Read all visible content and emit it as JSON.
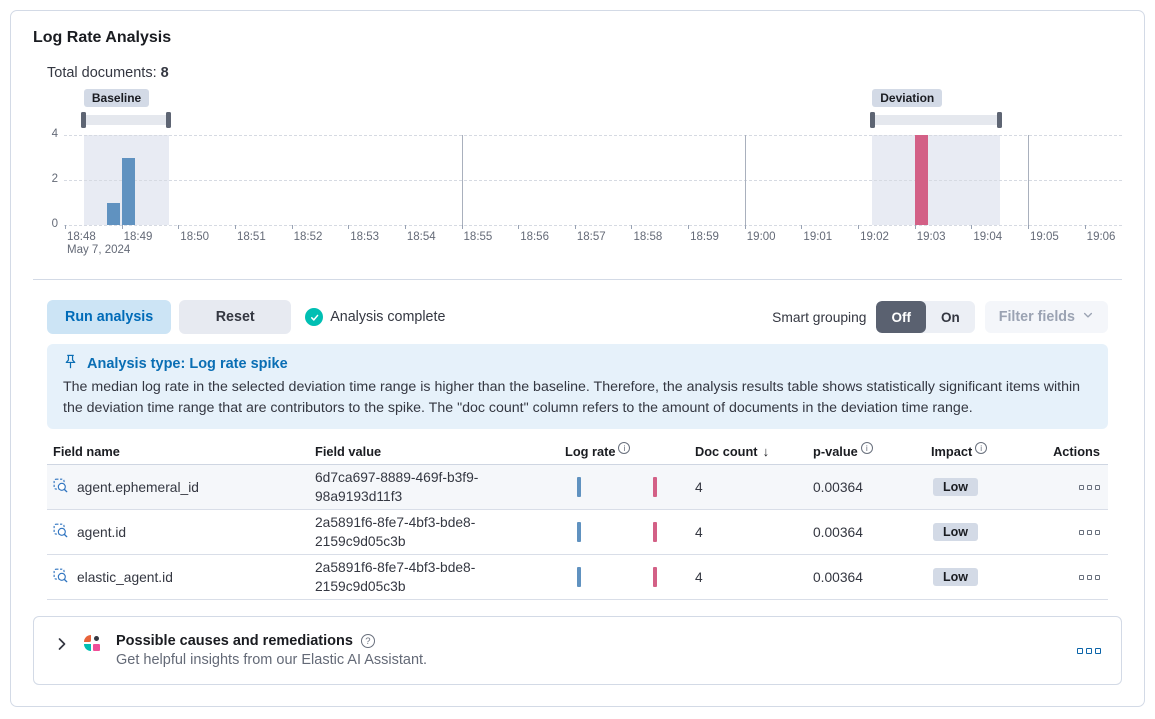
{
  "panel": {
    "title": "Log Rate Analysis",
    "total_documents_label": "Total documents:",
    "total_documents_value": "8"
  },
  "chart_data": {
    "type": "bar",
    "x_axis": {
      "date_label": "May 7, 2024",
      "tick_labels": [
        "18:48",
        "18:49",
        "18:50",
        "18:51",
        "18:52",
        "18:53",
        "18:54",
        "18:55",
        "18:56",
        "18:57",
        "18:58",
        "18:59",
        "19:00",
        "19:01",
        "19:02",
        "19:03",
        "19:04",
        "19:05",
        "19:06"
      ],
      "grid_lines": [
        "18:55",
        "19:00",
        "19:05"
      ],
      "start": "18:48",
      "minutes_span": 18.5
    },
    "y_axis": {
      "ticks": [
        0,
        2,
        4
      ],
      "max": 4
    },
    "bars": [
      {
        "time": "18:48:45",
        "value": 1,
        "series": "baseline"
      },
      {
        "time": "18:49:00",
        "value": 3,
        "series": "baseline"
      },
      {
        "time": "19:03:00",
        "value": 4,
        "series": "deviation"
      }
    ],
    "brushes": [
      {
        "label": "Baseline",
        "from": "18:48:20",
        "to": "18:49:50"
      },
      {
        "label": "Deviation",
        "from": "19:02:15",
        "to": "19:04:30"
      }
    ],
    "colors": {
      "baseline": "#6092C0",
      "deviation": "#D36086",
      "brush_shade": "#e8ebf3"
    }
  },
  "controls": {
    "run_button": "Run analysis",
    "reset_button": "Reset",
    "status": "Analysis complete",
    "smart_grouping_label": "Smart grouping",
    "toggle_off": "Off",
    "toggle_on": "On",
    "filter_fields": "Filter fields"
  },
  "callout": {
    "title": "Analysis type: Log rate spike",
    "body": "The median log rate in the selected deviation time range is higher than the baseline. Therefore, the analysis results table shows statistically significant items within the deviation time range that are contributors to the spike. The \"doc count\" column refers to the amount of documents in the deviation time range."
  },
  "table": {
    "headers": {
      "field_name": "Field name",
      "field_value": "Field value",
      "log_rate": "Log rate",
      "doc_count": "Doc count",
      "p_value": "p-value",
      "impact": "Impact",
      "actions": "Actions"
    },
    "rows": [
      {
        "field_name": "agent.ephemeral_id",
        "field_value": "6d7ca697-8889-469f-b3f9-98a9193d11f3",
        "doc_count": "4",
        "p_value": "0.00364",
        "impact": "Low"
      },
      {
        "field_name": "agent.id",
        "field_value": "2a5891f6-8fe7-4bf3-bde8-2159c9d05c3b",
        "doc_count": "4",
        "p_value": "0.00364",
        "impact": "Low"
      },
      {
        "field_name": "elastic_agent.id",
        "field_value": "2a5891f6-8fe7-4bf3-bde8-2159c9d05c3b",
        "doc_count": "4",
        "p_value": "0.00364",
        "impact": "Low"
      }
    ]
  },
  "insights": {
    "title": "Possible causes and remediations",
    "subtitle": "Get helpful insights from our Elastic AI Assistant."
  }
}
